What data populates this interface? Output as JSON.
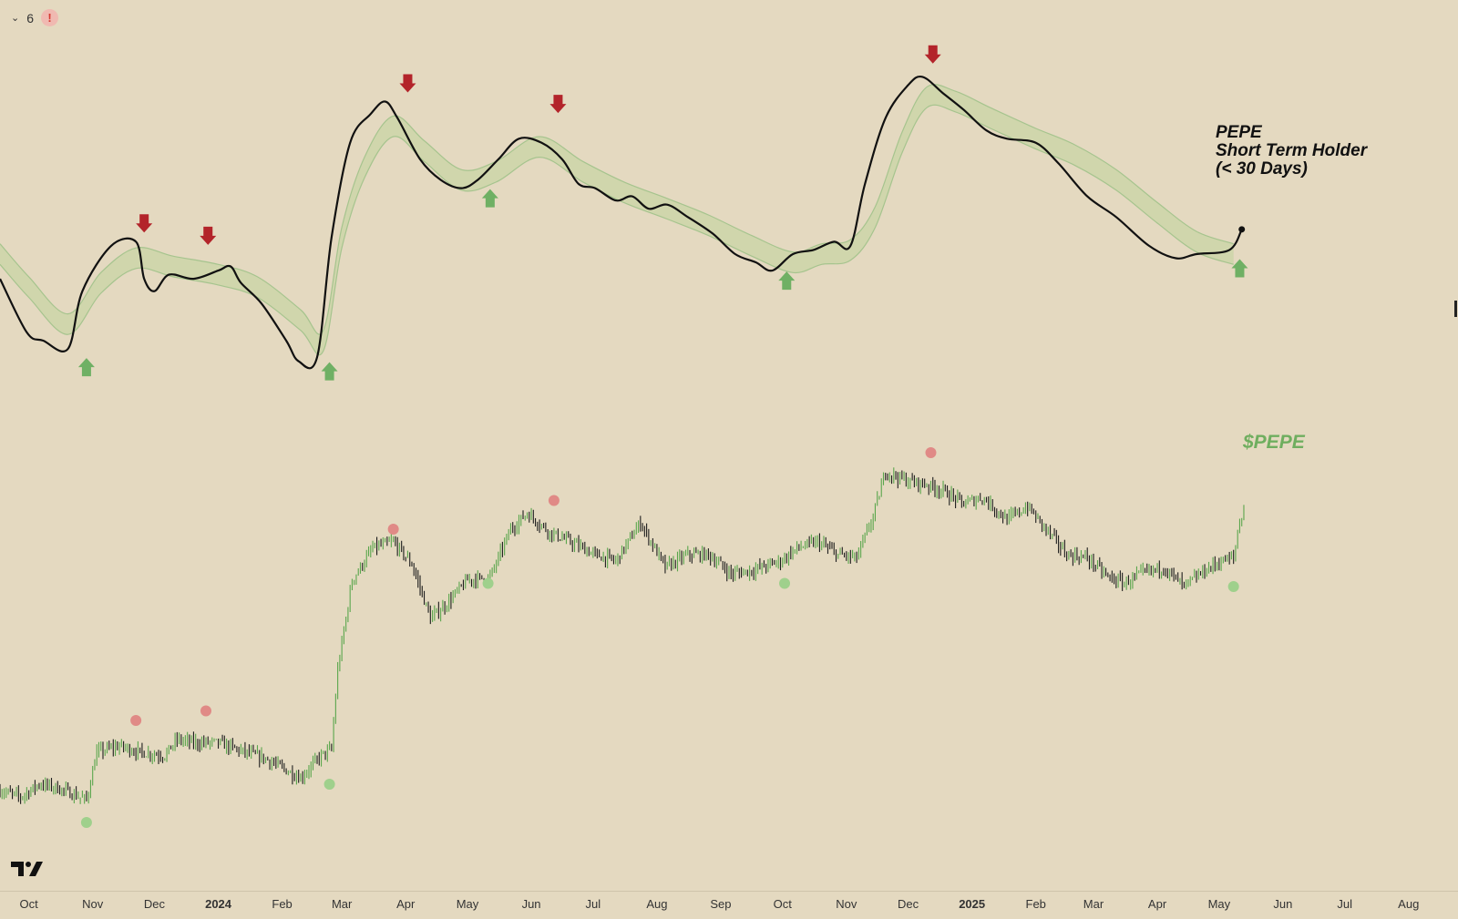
{
  "toolbar": {
    "indicator_count": "6",
    "alert_symbol": "!"
  },
  "colors": {
    "background": "#e4d9c0",
    "sth_line": "#111111",
    "band_fill": "#cdd5a8",
    "band_edge": "#a6c48e",
    "price_up": "#5aa64c",
    "price_down": "#1d1d1d",
    "sell_arrow": "#b3242a",
    "buy_arrow": "#6fb064",
    "peak_dot": "#e08a86",
    "trough_dot": "#9fd08c"
  },
  "chart_data": {
    "type": "line",
    "title": "PEPE\nShort Term Holder\n(< 30 Days)",
    "title_lines": [
      "PEPE",
      "Short Term Holder",
      "(< 30 Days)"
    ],
    "price_label": "$PEPE",
    "xlabel": "",
    "ylabel": "",
    "x_range": [
      "2023-09-17",
      "2025-08-25"
    ],
    "x_ticks": [
      {
        "label": "Oct",
        "date": "2023-10-01",
        "bold": false
      },
      {
        "label": "Nov",
        "date": "2023-11-01",
        "bold": false
      },
      {
        "label": "Dec",
        "date": "2023-12-01",
        "bold": false
      },
      {
        "label": "2024",
        "date": "2024-01-01",
        "bold": true
      },
      {
        "label": "Feb",
        "date": "2024-02-01",
        "bold": false
      },
      {
        "label": "Mar",
        "date": "2024-03-01",
        "bold": false
      },
      {
        "label": "Apr",
        "date": "2024-04-01",
        "bold": false
      },
      {
        "label": "May",
        "date": "2024-05-01",
        "bold": false
      },
      {
        "label": "Jun",
        "date": "2024-06-01",
        "bold": false
      },
      {
        "label": "Jul",
        "date": "2024-07-01",
        "bold": false
      },
      {
        "label": "Aug",
        "date": "2024-08-01",
        "bold": false
      },
      {
        "label": "Sep",
        "date": "2024-09-01",
        "bold": false
      },
      {
        "label": "Oct",
        "date": "2024-10-01",
        "bold": false
      },
      {
        "label": "Nov",
        "date": "2024-11-01",
        "bold": false
      },
      {
        "label": "Dec",
        "date": "2024-12-01",
        "bold": false
      },
      {
        "label": "2025",
        "date": "2025-01-01",
        "bold": true
      },
      {
        "label": "Feb",
        "date": "2025-02-01",
        "bold": false
      },
      {
        "label": "Mar",
        "date": "2025-03-01",
        "bold": false
      },
      {
        "label": "Apr",
        "date": "2025-04-01",
        "bold": false
      },
      {
        "label": "May",
        "date": "2025-05-01",
        "bold": false
      },
      {
        "label": "Jun",
        "date": "2025-06-01",
        "bold": false
      },
      {
        "label": "Jul",
        "date": "2025-07-01",
        "bold": false
      },
      {
        "label": "Aug",
        "date": "2025-08-01",
        "bold": false
      }
    ],
    "sth_ylim": [
      0,
      100
    ],
    "sth_series": {
      "name": "Short Term Holder",
      "points": [
        [
          "2023-09-17",
          55
        ],
        [
          "2023-09-30",
          42
        ],
        [
          "2023-10-08",
          40
        ],
        [
          "2023-10-20",
          38
        ],
        [
          "2023-10-27",
          52
        ],
        [
          "2023-11-10",
          63
        ],
        [
          "2023-11-22",
          64
        ],
        [
          "2023-11-26",
          55
        ],
        [
          "2023-12-01",
          52
        ],
        [
          "2023-12-08",
          56
        ],
        [
          "2023-12-20",
          55
        ],
        [
          "2024-01-01",
          57
        ],
        [
          "2024-01-07",
          58
        ],
        [
          "2024-01-12",
          54
        ],
        [
          "2024-01-22",
          49
        ],
        [
          "2024-02-03",
          40
        ],
        [
          "2024-02-09",
          35
        ],
        [
          "2024-02-18",
          36
        ],
        [
          "2024-02-25",
          65
        ],
        [
          "2024-03-05",
          88
        ],
        [
          "2024-03-15",
          95
        ],
        [
          "2024-03-22",
          98
        ],
        [
          "2024-03-28",
          94
        ],
        [
          "2024-04-08",
          84
        ],
        [
          "2024-04-18",
          79
        ],
        [
          "2024-04-28",
          77
        ],
        [
          "2024-05-06",
          79
        ],
        [
          "2024-05-16",
          84
        ],
        [
          "2024-05-26",
          89
        ],
        [
          "2024-06-06",
          88
        ],
        [
          "2024-06-16",
          84
        ],
        [
          "2024-06-24",
          78
        ],
        [
          "2024-07-02",
          77
        ],
        [
          "2024-07-12",
          74
        ],
        [
          "2024-07-20",
          75
        ],
        [
          "2024-07-28",
          72
        ],
        [
          "2024-08-06",
          73
        ],
        [
          "2024-08-16",
          70
        ],
        [
          "2024-08-28",
          66
        ],
        [
          "2024-09-08",
          61
        ],
        [
          "2024-09-18",
          59
        ],
        [
          "2024-09-26",
          57
        ],
        [
          "2024-10-06",
          61
        ],
        [
          "2024-10-16",
          62
        ],
        [
          "2024-10-26",
          64
        ],
        [
          "2024-11-03",
          63
        ],
        [
          "2024-11-10",
          78
        ],
        [
          "2024-11-20",
          94
        ],
        [
          "2024-12-01",
          102
        ],
        [
          "2024-12-08",
          104
        ],
        [
          "2024-12-18",
          100
        ],
        [
          "2024-12-28",
          96
        ],
        [
          "2025-01-08",
          91
        ],
        [
          "2025-01-18",
          89
        ],
        [
          "2025-02-01",
          88
        ],
        [
          "2025-02-12",
          83
        ],
        [
          "2025-02-26",
          75
        ],
        [
          "2025-03-12",
          70
        ],
        [
          "2025-03-28",
          63
        ],
        [
          "2025-04-10",
          60
        ],
        [
          "2025-04-20",
          61
        ],
        [
          "2025-05-06",
          62
        ],
        [
          "2025-05-12",
          67
        ]
      ]
    },
    "band_series": {
      "name": "",
      "points": [
        [
          "2023-09-17",
          61
        ],
        [
          "2023-10-01",
          53
        ],
        [
          "2023-10-20",
          44
        ],
        [
          "2023-11-05",
          54
        ],
        [
          "2023-11-22",
          60
        ],
        [
          "2023-12-10",
          58
        ],
        [
          "2024-01-01",
          56
        ],
        [
          "2024-01-20",
          53
        ],
        [
          "2024-02-10",
          45
        ],
        [
          "2024-02-21",
          40
        ],
        [
          "2024-03-01",
          65
        ],
        [
          "2024-03-12",
          82
        ],
        [
          "2024-03-26",
          92
        ],
        [
          "2024-04-10",
          86
        ],
        [
          "2024-04-28",
          79
        ],
        [
          "2024-05-15",
          81
        ],
        [
          "2024-06-05",
          87
        ],
        [
          "2024-06-26",
          81
        ],
        [
          "2024-07-16",
          76
        ],
        [
          "2024-08-06",
          72
        ],
        [
          "2024-08-26",
          68
        ],
        [
          "2024-09-16",
          63
        ],
        [
          "2024-10-06",
          59
        ],
        [
          "2024-10-20",
          61
        ],
        [
          "2024-11-03",
          62
        ],
        [
          "2024-11-15",
          70
        ],
        [
          "2024-11-28",
          88
        ],
        [
          "2024-12-10",
          99
        ],
        [
          "2024-12-24",
          98
        ],
        [
          "2025-01-10",
          94
        ],
        [
          "2025-02-01",
          89
        ],
        [
          "2025-02-20",
          85
        ],
        [
          "2025-03-12",
          79
        ],
        [
          "2025-04-01",
          71
        ],
        [
          "2025-04-20",
          64
        ],
        [
          "2025-05-08",
          61
        ]
      ],
      "band_width": 5
    },
    "sth_sell_signals": [
      {
        "date": "2023-11-26",
        "value": 68
      },
      {
        "date": "2023-12-27",
        "value": 65
      },
      {
        "date": "2024-04-02",
        "value": 102
      },
      {
        "date": "2024-06-14",
        "value": 97
      },
      {
        "date": "2024-12-13",
        "value": 109
      }
    ],
    "sth_buy_signals": [
      {
        "date": "2023-10-29",
        "value": 34
      },
      {
        "date": "2024-02-24",
        "value": 33
      },
      {
        "date": "2024-05-12",
        "value": 75
      },
      {
        "date": "2024-10-03",
        "value": 55
      },
      {
        "date": "2025-05-11",
        "value": 58
      }
    ],
    "price_ylim": [
      0,
      100
    ],
    "price_series": {
      "name": "$PEPE",
      "points": [
        [
          "2023-09-17",
          12
        ],
        [
          "2023-09-27",
          10
        ],
        [
          "2023-10-06",
          14
        ],
        [
          "2023-10-14",
          13
        ],
        [
          "2023-10-22",
          11
        ],
        [
          "2023-10-29",
          9
        ],
        [
          "2023-11-03",
          24
        ],
        [
          "2023-11-14",
          26
        ],
        [
          "2023-11-24",
          24
        ],
        [
          "2023-12-06",
          23
        ],
        [
          "2023-12-12",
          28
        ],
        [
          "2023-12-20",
          27
        ],
        [
          "2024-01-01",
          27
        ],
        [
          "2024-01-14",
          24
        ],
        [
          "2024-01-24",
          22
        ],
        [
          "2024-02-04",
          18
        ],
        [
          "2024-02-10",
          16
        ],
        [
          "2024-02-20",
          23
        ],
        [
          "2024-02-25",
          25
        ],
        [
          "2024-02-28",
          50
        ],
        [
          "2024-03-06",
          78
        ],
        [
          "2024-03-16",
          88
        ],
        [
          "2024-03-26",
          90
        ],
        [
          "2024-04-04",
          83
        ],
        [
          "2024-04-13",
          66
        ],
        [
          "2024-04-20",
          70
        ],
        [
          "2024-05-01",
          78
        ],
        [
          "2024-05-12",
          79
        ],
        [
          "2024-05-22",
          94
        ],
        [
          "2024-05-30",
          99
        ],
        [
          "2024-06-10",
          93
        ],
        [
          "2024-06-20",
          90
        ],
        [
          "2024-07-02",
          86
        ],
        [
          "2024-07-12",
          84
        ],
        [
          "2024-07-24",
          96
        ],
        [
          "2024-08-05",
          82
        ],
        [
          "2024-08-16",
          86
        ],
        [
          "2024-08-26",
          86
        ],
        [
          "2024-09-06",
          80
        ],
        [
          "2024-09-16",
          81
        ],
        [
          "2024-09-30",
          84
        ],
        [
          "2024-10-08",
          88
        ],
        [
          "2024-10-18",
          90
        ],
        [
          "2024-10-28",
          86
        ],
        [
          "2024-11-06",
          85
        ],
        [
          "2024-11-14",
          98
        ],
        [
          "2024-11-20",
          112
        ],
        [
          "2024-12-01",
          109
        ],
        [
          "2024-12-10",
          108
        ],
        [
          "2024-12-18",
          106
        ],
        [
          "2024-12-28",
          102
        ],
        [
          "2025-01-06",
          104
        ],
        [
          "2025-01-18",
          97
        ],
        [
          "2025-01-28",
          101
        ],
        [
          "2025-02-06",
          94
        ],
        [
          "2025-02-16",
          86
        ],
        [
          "2025-02-26",
          85
        ],
        [
          "2025-03-08",
          79
        ],
        [
          "2025-03-16",
          77
        ],
        [
          "2025-03-24",
          80
        ],
        [
          "2025-04-04",
          82
        ],
        [
          "2025-04-14",
          76
        ],
        [
          "2025-04-24",
          81
        ],
        [
          "2025-05-02",
          84
        ],
        [
          "2025-05-08",
          85
        ],
        [
          "2025-05-10",
          93
        ],
        [
          "2025-05-13",
          101
        ]
      ]
    },
    "price_peak_markers": [
      {
        "date": "2023-11-22",
        "value": 34
      },
      {
        "date": "2023-12-26",
        "value": 37
      },
      {
        "date": "2024-03-26",
        "value": 94
      },
      {
        "date": "2024-06-12",
        "value": 103
      },
      {
        "date": "2024-12-12",
        "value": 118
      }
    ],
    "price_trough_markers": [
      {
        "date": "2023-10-29",
        "value": 2
      },
      {
        "date": "2024-02-24",
        "value": 14
      },
      {
        "date": "2024-05-11",
        "value": 77
      },
      {
        "date": "2024-10-02",
        "value": 77
      },
      {
        "date": "2025-05-08",
        "value": 76
      }
    ]
  }
}
